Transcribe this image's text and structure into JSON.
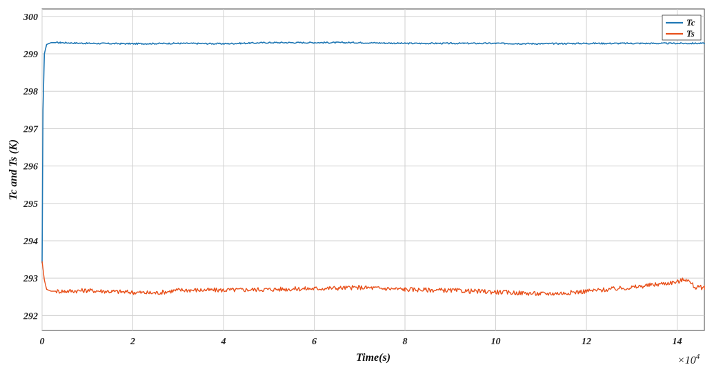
{
  "chart_data": {
    "type": "line",
    "xlabel": "Time(s)",
    "ylabel": "Tc and Ts (K)",
    "x_multiplier": "×10",
    "x_multiplier_exp": "4",
    "xlim": [
      0,
      14.6
    ],
    "ylim": [
      291.6,
      300.2
    ],
    "x_ticks": [
      0,
      2,
      4,
      6,
      8,
      10,
      12,
      14
    ],
    "y_ticks": [
      292,
      293,
      294,
      295,
      296,
      297,
      298,
      299,
      300
    ],
    "x_tick_labels": [
      "0",
      "2",
      "4",
      "6",
      "8",
      "10",
      "12",
      "14"
    ],
    "y_tick_labels": [
      "292",
      "293",
      "294",
      "295",
      "296",
      "297",
      "298",
      "299",
      "300"
    ],
    "grid": true,
    "legend_position": "top-right",
    "series": [
      {
        "name": "Tc",
        "color": "#1f77b4",
        "x": [
          0,
          0.02,
          0.05,
          0.1,
          0.2,
          0.4,
          1,
          2,
          3,
          4,
          5,
          6,
          7,
          8,
          9,
          10,
          11,
          12,
          13,
          14,
          14.6
        ],
        "y": [
          293.4,
          297.5,
          299.0,
          299.25,
          299.3,
          299.3,
          299.28,
          299.27,
          299.28,
          299.27,
          299.3,
          299.3,
          299.3,
          299.28,
          299.28,
          299.28,
          299.27,
          299.28,
          299.28,
          299.28,
          299.28
        ]
      },
      {
        "name": "Ts",
        "color": "#e8501a",
        "x": [
          0,
          0.05,
          0.1,
          0.2,
          0.5,
          1,
          2,
          2.5,
          3,
          4,
          5,
          6,
          7,
          8,
          9,
          10,
          11,
          11.5,
          12,
          13,
          14,
          14.2,
          14.4,
          14.6
        ],
        "y": [
          293.45,
          292.95,
          292.7,
          292.65,
          292.65,
          292.67,
          292.62,
          292.6,
          292.68,
          292.68,
          292.7,
          292.72,
          292.75,
          292.7,
          292.67,
          292.63,
          292.58,
          292.6,
          292.65,
          292.75,
          292.9,
          292.98,
          292.75,
          292.75
        ]
      }
    ]
  }
}
